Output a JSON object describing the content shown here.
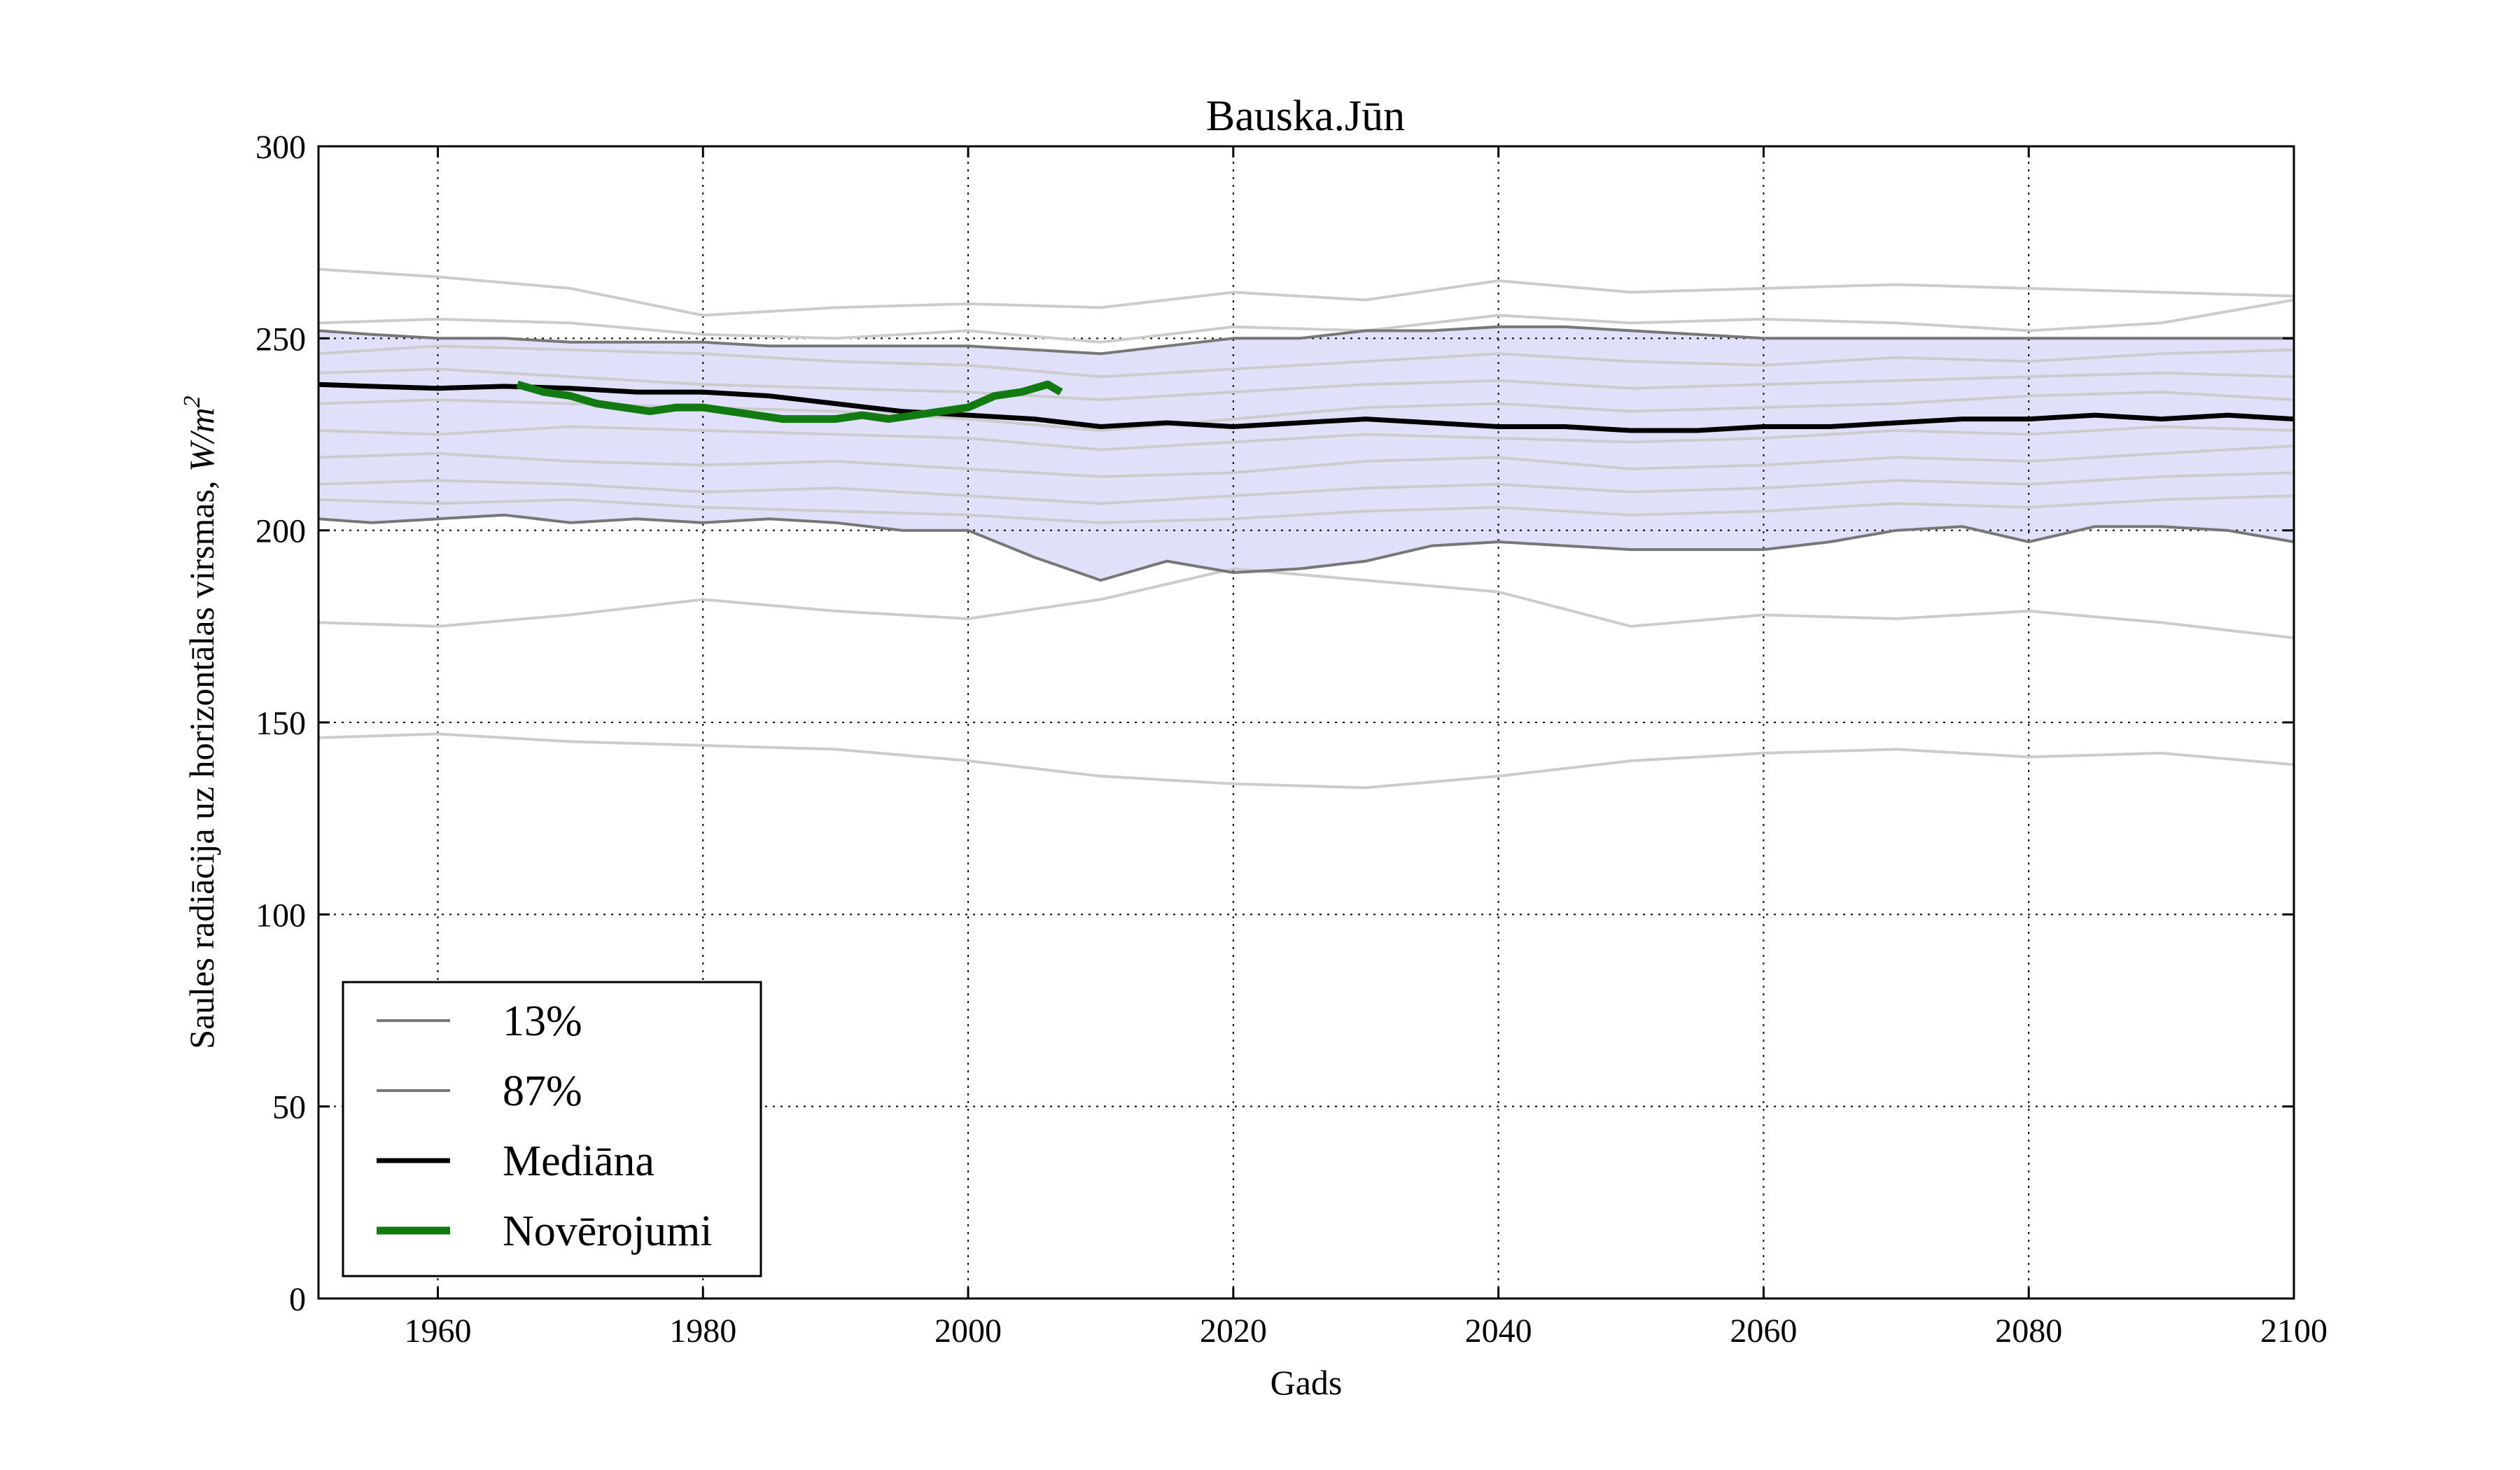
{
  "chart_data": {
    "type": "line",
    "title": "Bauska.Jūn",
    "xlabel": "Gads",
    "ylabel": "Saules radiācija uz horizontālas virsmas, ",
    "ylabel_unit_main": "W/m",
    "ylabel_unit_sup": "2",
    "xlim": [
      1951,
      2100
    ],
    "ylim": [
      0,
      300
    ],
    "xticks": [
      1960,
      1980,
      2000,
      2020,
      2040,
      2060,
      2080,
      2100
    ],
    "yticks": [
      0,
      50,
      100,
      150,
      200,
      250,
      300
    ],
    "grid": true,
    "legend_position": "lower-left",
    "colors": {
      "band_fill": "#e0e0fb",
      "model_lines": "#cccccc",
      "percentile": "#777777",
      "median": "#000000",
      "observations": "#117a11"
    },
    "band": {
      "x": [
        1951,
        1955,
        1960,
        1965,
        1970,
        1975,
        1980,
        1985,
        1990,
        1995,
        2000,
        2005,
        2010,
        2015,
        2020,
        2025,
        2030,
        2035,
        2040,
        2045,
        2050,
        2055,
        2060,
        2065,
        2070,
        2075,
        2080,
        2085,
        2090,
        2095,
        2100
      ],
      "lower": [
        203,
        202,
        203,
        204,
        202,
        203,
        202,
        203,
        202,
        200,
        200,
        193,
        187,
        192,
        189,
        190,
        192,
        196,
        197,
        196,
        195,
        195,
        195,
        197,
        200,
        201,
        197,
        201,
        201,
        200,
        197
      ],
      "upper": [
        252,
        251,
        250,
        250,
        249,
        249,
        249,
        248,
        248,
        248,
        248,
        247,
        246,
        248,
        250,
        250,
        252,
        252,
        253,
        253,
        252,
        251,
        250,
        250,
        250,
        250,
        250,
        250,
        250,
        250,
        250
      ]
    },
    "series": [
      {
        "name": "13%",
        "x": [
          1951,
          1955,
          1960,
          1965,
          1970,
          1975,
          1980,
          1985,
          1990,
          1995,
          2000,
          2005,
          2010,
          2015,
          2020,
          2025,
          2030,
          2035,
          2040,
          2045,
          2050,
          2055,
          2060,
          2065,
          2070,
          2075,
          2080,
          2085,
          2090,
          2095,
          2100
        ],
        "values": [
          203,
          202,
          203,
          204,
          202,
          203,
          202,
          203,
          202,
          200,
          200,
          193,
          187,
          192,
          189,
          190,
          192,
          196,
          197,
          196,
          195,
          195,
          195,
          197,
          200,
          201,
          197,
          201,
          201,
          200,
          197
        ]
      },
      {
        "name": "87%",
        "x": [
          1951,
          1955,
          1960,
          1965,
          1970,
          1975,
          1980,
          1985,
          1990,
          1995,
          2000,
          2005,
          2010,
          2015,
          2020,
          2025,
          2030,
          2035,
          2040,
          2045,
          2050,
          2055,
          2060,
          2065,
          2070,
          2075,
          2080,
          2085,
          2090,
          2095,
          2100
        ],
        "values": [
          252,
          251,
          250,
          250,
          249,
          249,
          249,
          248,
          248,
          248,
          248,
          247,
          246,
          248,
          250,
          250,
          252,
          252,
          253,
          253,
          252,
          251,
          250,
          250,
          250,
          250,
          250,
          250,
          250,
          250,
          250
        ]
      },
      {
        "name": "Mediāna",
        "x": [
          1951,
          1955,
          1960,
          1965,
          1970,
          1975,
          1980,
          1985,
          1990,
          1995,
          2000,
          2005,
          2010,
          2015,
          2020,
          2025,
          2030,
          2035,
          2040,
          2045,
          2050,
          2055,
          2060,
          2065,
          2070,
          2075,
          2080,
          2085,
          2090,
          2095,
          2100
        ],
        "values": [
          238,
          237.5,
          237,
          237.5,
          237,
          236,
          236,
          235,
          233,
          231,
          230,
          229,
          227,
          228,
          227,
          228,
          229,
          228,
          227,
          227,
          226,
          226,
          227,
          227,
          228,
          229,
          229,
          230,
          229,
          230,
          229
        ]
      },
      {
        "name": "Novērojumi",
        "x": [
          1966,
          1968,
          1970,
          1972,
          1974,
          1976,
          1978,
          1980,
          1982,
          1984,
          1986,
          1988,
          1990,
          1992,
          1994,
          1996,
          1998,
          2000,
          2002,
          2004,
          2006,
          2007
        ],
        "values": [
          238,
          236,
          235,
          233,
          232,
          231,
          232,
          232,
          231,
          230,
          229,
          229,
          229,
          230,
          229,
          230,
          231,
          232,
          235,
          236,
          238,
          236
        ]
      }
    ],
    "model_runs": [
      {
        "x": [
          1951,
          1960,
          1970,
          1980,
          1990,
          2000,
          2010,
          2020,
          2030,
          2040,
          2050,
          2060,
          2070,
          2080,
          2090,
          2100
        ],
        "values": [
          268,
          266,
          263,
          256,
          258,
          259,
          258,
          262,
          260,
          265,
          262,
          263,
          264,
          263,
          262,
          261
        ]
      },
      {
        "x": [
          1951,
          1960,
          1970,
          1980,
          1990,
          2000,
          2010,
          2020,
          2030,
          2040,
          2050,
          2060,
          2070,
          2080,
          2090,
          2100
        ],
        "values": [
          254,
          255,
          254,
          251,
          250,
          252,
          249,
          253,
          252,
          256,
          254,
          255,
          254,
          252,
          254,
          260
        ]
      },
      {
        "x": [
          1951,
          1960,
          1970,
          1980,
          1990,
          2000,
          2010,
          2020,
          2030,
          2040,
          2050,
          2060,
          2070,
          2080,
          2090,
          2100
        ],
        "values": [
          246,
          248,
          247,
          246,
          244,
          243,
          240,
          242,
          244,
          246,
          244,
          243,
          245,
          244,
          246,
          247
        ]
      },
      {
        "x": [
          1951,
          1960,
          1970,
          1980,
          1990,
          2000,
          2010,
          2020,
          2030,
          2040,
          2050,
          2060,
          2070,
          2080,
          2090,
          2100
        ],
        "values": [
          241,
          242,
          240,
          238,
          237,
          236,
          234,
          236,
          238,
          239,
          237,
          238,
          239,
          240,
          241,
          240
        ]
      },
      {
        "x": [
          1951,
          1960,
          1970,
          1980,
          1990,
          2000,
          2010,
          2020,
          2030,
          2040,
          2050,
          2060,
          2070,
          2080,
          2090,
          2100
        ],
        "values": [
          233,
          234,
          233,
          232,
          231,
          229,
          226,
          229,
          232,
          233,
          231,
          232,
          233,
          235,
          236,
          234
        ]
      },
      {
        "x": [
          1951,
          1960,
          1970,
          1980,
          1990,
          2000,
          2010,
          2020,
          2030,
          2040,
          2050,
          2060,
          2070,
          2080,
          2090,
          2100
        ],
        "values": [
          226,
          225,
          227,
          226,
          225,
          224,
          221,
          223,
          225,
          224,
          223,
          224,
          226,
          225,
          227,
          226
        ]
      },
      {
        "x": [
          1951,
          1960,
          1970,
          1980,
          1990,
          2000,
          2010,
          2020,
          2030,
          2040,
          2050,
          2060,
          2070,
          2080,
          2090,
          2100
        ],
        "values": [
          219,
          220,
          218,
          217,
          218,
          216,
          214,
          215,
          218,
          219,
          216,
          217,
          219,
          218,
          220,
          222
        ]
      },
      {
        "x": [
          1951,
          1960,
          1970,
          1980,
          1990,
          2000,
          2010,
          2020,
          2030,
          2040,
          2050,
          2060,
          2070,
          2080,
          2090,
          2100
        ],
        "values": [
          212,
          213,
          212,
          210,
          211,
          209,
          207,
          209,
          211,
          212,
          210,
          211,
          213,
          212,
          214,
          215
        ]
      },
      {
        "x": [
          1951,
          1960,
          1970,
          1980,
          1990,
          2000,
          2010,
          2020,
          2030,
          2040,
          2050,
          2060,
          2070,
          2080,
          2090,
          2100
        ],
        "values": [
          208,
          207,
          208,
          206,
          205,
          204,
          202,
          203,
          205,
          206,
          204,
          205,
          207,
          206,
          208,
          209
        ]
      },
      {
        "x": [
          1951,
          1960,
          1970,
          1980,
          1990,
          2000,
          2010,
          2020,
          2030,
          2040,
          2050,
          2060,
          2070,
          2080,
          2090,
          2100
        ],
        "values": [
          176,
          175,
          178,
          182,
          179,
          177,
          182,
          190,
          187,
          184,
          175,
          178,
          177,
          179,
          176,
          172
        ]
      },
      {
        "x": [
          1951,
          1960,
          1970,
          1980,
          1990,
          2000,
          2010,
          2020,
          2030,
          2040,
          2050,
          2060,
          2070,
          2080,
          2090,
          2100
        ],
        "values": [
          146,
          147,
          145,
          144,
          143,
          140,
          136,
          134,
          133,
          136,
          140,
          142,
          143,
          141,
          142,
          139
        ]
      }
    ]
  }
}
